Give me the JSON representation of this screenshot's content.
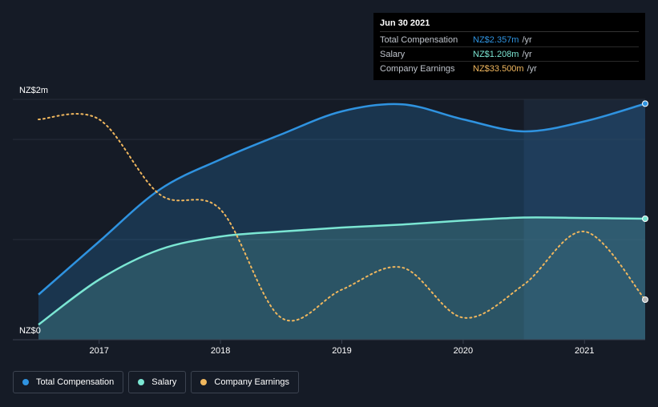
{
  "colors": {
    "background": "#151b26",
    "total": "#2f93e0",
    "salary": "#7be6d3",
    "earnings": "#f0b75e",
    "highlight": "#1c2838"
  },
  "tooltip": {
    "date": "Jun 30 2021",
    "rows": [
      {
        "label": "Total Compensation",
        "value": "NZ$2.357m",
        "unit": "/yr",
        "color": "#2f93e0"
      },
      {
        "label": "Salary",
        "value": "NZ$1.208m",
        "unit": "/yr",
        "color": "#7be6d3"
      },
      {
        "label": "Company Earnings",
        "value": "NZ$33.500m",
        "unit": "/yr",
        "color": "#f0b75e"
      }
    ]
  },
  "legend": [
    {
      "label": "Total Compensation",
      "color": "#2f93e0"
    },
    {
      "label": "Salary",
      "color": "#7be6d3"
    },
    {
      "label": "Company Earnings",
      "color": "#f0b75e"
    }
  ],
  "chart_data": {
    "type": "area",
    "title": "",
    "xlabel": "",
    "ylabel": "",
    "y_tick_labels": [
      "NZ$0",
      "NZ$2m"
    ],
    "x_tick_labels": [
      "2017",
      "2018",
      "2019",
      "2020",
      "2021"
    ],
    "x_ticks": [
      2017,
      2018,
      2019,
      2020,
      2021
    ],
    "xlim": [
      2016.5,
      2021.5
    ],
    "ylim": [
      0,
      2.4
    ],
    "highlight_range": [
      2020.5,
      2021.5
    ],
    "series": [
      {
        "name": "Total Compensation",
        "unit": "NZ$m",
        "x": [
          2016.5,
          2017.0,
          2017.5,
          2018.0,
          2018.5,
          2019.0,
          2019.5,
          2020.0,
          2020.5,
          2021.0,
          2021.5
        ],
        "values": [
          0.45,
          0.98,
          1.5,
          1.8,
          2.05,
          2.28,
          2.35,
          2.2,
          2.08,
          2.18,
          2.357
        ]
      },
      {
        "name": "Salary",
        "unit": "NZ$m",
        "x": [
          2016.5,
          2017.0,
          2017.5,
          2018.0,
          2018.5,
          2019.0,
          2019.5,
          2020.0,
          2020.5,
          2021.0,
          2021.5
        ],
        "values": [
          0.15,
          0.6,
          0.9,
          1.03,
          1.08,
          1.12,
          1.15,
          1.19,
          1.22,
          1.215,
          1.208
        ]
      },
      {
        "name": "Company Earnings",
        "unit": "relative",
        "x": [
          2016.5,
          2017.0,
          2017.5,
          2018.0,
          2018.5,
          2019.0,
          2019.5,
          2020.0,
          2020.5,
          2021.0,
          2021.5
        ],
        "values": [
          2.2,
          2.2,
          1.45,
          1.3,
          0.22,
          0.5,
          0.72,
          0.22,
          0.55,
          1.08,
          0.4
        ]
      }
    ]
  }
}
